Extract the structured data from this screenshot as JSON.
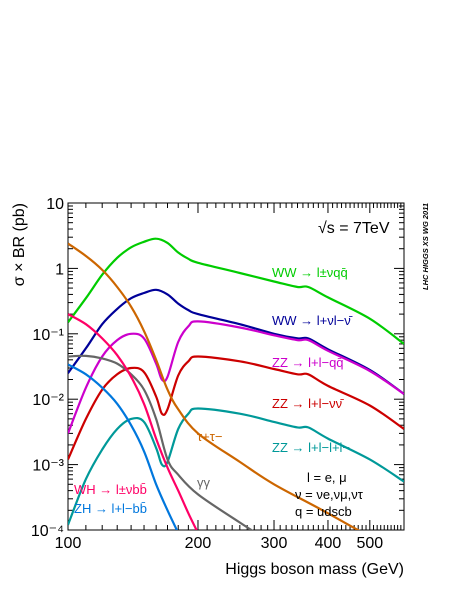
{
  "chart_data": {
    "type": "line",
    "xlabel": "Higgs boson mass (GeV)",
    "ylabel": "σ × BR (pb)",
    "energy_label": "√s = 7TeV",
    "side_label": "LHC HIGGS XS WG 2011",
    "x_scale": "log",
    "y_scale": "log",
    "xlim": [
      100,
      600
    ],
    "ylim": [
      0.0001,
      10
    ],
    "x_ticks": [
      {
        "value": 100,
        "label": "100"
      },
      {
        "value": 200,
        "label": "200"
      },
      {
        "value": 300,
        "label": "300"
      },
      {
        "value": 400,
        "label": "400"
      },
      {
        "value": 500,
        "label": "500"
      }
    ],
    "y_ticks": [
      {
        "value": 10,
        "label": "10"
      },
      {
        "value": 1,
        "label": "1"
      },
      {
        "value": 0.1,
        "label": "10⁻¹"
      },
      {
        "value": 0.01,
        "label": "10⁻²"
      },
      {
        "value": 0.001,
        "label": "10⁻³"
      },
      {
        "value": 0.0001,
        "label": "10⁻⁴"
      }
    ],
    "legend_notes": [
      "l = e, μ",
      "ν = νe,νμ,ντ",
      "q = udscb"
    ],
    "series": [
      {
        "name": "WW → lνqq̄",
        "color": "#00cc00",
        "x": [
          100,
          110,
          120,
          130,
          140,
          150,
          160,
          170,
          180,
          190,
          200,
          250,
          300,
          340,
          360,
          400,
          500,
          600
        ],
        "y": [
          0.15,
          0.35,
          0.8,
          1.45,
          2.1,
          2.55,
          2.85,
          2.45,
          1.75,
          1.4,
          1.22,
          0.85,
          0.63,
          0.52,
          0.52,
          0.36,
          0.17,
          0.07
        ]
      },
      {
        "name": "WW → lνlν",
        "color": "#000099",
        "x": [
          100,
          110,
          120,
          130,
          140,
          150,
          160,
          170,
          180,
          190,
          200,
          250,
          300,
          340,
          360,
          400,
          500,
          600
        ],
        "y": [
          0.025,
          0.06,
          0.14,
          0.24,
          0.35,
          0.42,
          0.47,
          0.4,
          0.29,
          0.23,
          0.2,
          0.14,
          0.1,
          0.085,
          0.085,
          0.058,
          0.028,
          0.012
        ]
      },
      {
        "name": "ZZ → llqq̄",
        "color": "#cc00cc",
        "x": [
          100,
          110,
          120,
          130,
          140,
          150,
          160,
          165,
          170,
          180,
          190,
          200,
          250,
          300,
          340,
          360,
          400,
          500,
          600
        ],
        "y": [
          0.003,
          0.015,
          0.045,
          0.08,
          0.1,
          0.085,
          0.035,
          0.02,
          0.022,
          0.075,
          0.13,
          0.155,
          0.125,
          0.095,
          0.08,
          0.08,
          0.055,
          0.027,
          0.012
        ]
      },
      {
        "name": "ZZ → llνν",
        "color": "#cc0000",
        "x": [
          100,
          110,
          120,
          130,
          140,
          150,
          160,
          165,
          170,
          180,
          190,
          200,
          250,
          300,
          340,
          360,
          400,
          500,
          600
        ],
        "y": [
          0.0012,
          0.005,
          0.014,
          0.024,
          0.03,
          0.026,
          0.011,
          0.006,
          0.007,
          0.023,
          0.038,
          0.045,
          0.038,
          0.029,
          0.024,
          0.024,
          0.016,
          0.008,
          0.0035
        ]
      },
      {
        "name": "ZZ → llll",
        "color": "#009999",
        "x": [
          100,
          110,
          120,
          130,
          140,
          150,
          160,
          165,
          170,
          180,
          190,
          200,
          250,
          300,
          340,
          360,
          400,
          500,
          600
        ],
        "y": [
          0.00012,
          0.0006,
          0.0017,
          0.0035,
          0.005,
          0.0045,
          0.0018,
          0.001,
          0.0011,
          0.0035,
          0.006,
          0.0072,
          0.006,
          0.0045,
          0.0037,
          0.0037,
          0.0025,
          0.0012,
          0.00055
        ]
      },
      {
        "name": "ττ",
        "color": "#cc6600",
        "x": [
          100,
          110,
          120,
          130,
          140,
          150,
          160,
          170,
          180,
          200,
          250,
          300,
          400,
          600
        ],
        "y": [
          2.4,
          1.55,
          0.95,
          0.52,
          0.26,
          0.11,
          0.04,
          0.014,
          0.007,
          0.003,
          0.0011,
          0.0005,
          0.00018,
          4e-05
        ]
      },
      {
        "name": "γγ",
        "color": "#666666",
        "x": [
          100,
          110,
          120,
          130,
          140,
          150,
          160,
          170,
          180,
          200,
          250,
          300
        ],
        "y": [
          0.045,
          0.046,
          0.042,
          0.035,
          0.024,
          0.014,
          0.005,
          0.0012,
          0.0007,
          0.00035,
          0.00013,
          6e-05
        ]
      },
      {
        "name": "WH → lνbb̄",
        "color": "#ff0066",
        "x": [
          100,
          110,
          120,
          130,
          140,
          150,
          160,
          170,
          180,
          190,
          200
        ],
        "y": [
          0.2,
          0.14,
          0.085,
          0.047,
          0.022,
          0.0085,
          0.0025,
          0.0009,
          0.0004,
          0.00018,
          9e-05
        ]
      },
      {
        "name": "ZH → llbb̄",
        "color": "#0077dd",
        "x": [
          100,
          110,
          120,
          130,
          140,
          150,
          160,
          170,
          180,
          190
        ],
        "y": [
          0.034,
          0.024,
          0.015,
          0.0085,
          0.004,
          0.0016,
          0.0005,
          0.0002,
          9e-05,
          4e-05
        ]
      }
    ],
    "series_labels": [
      {
        "text": "WW → l±νqq̄",
        "series": 0
      },
      {
        "text": "WW → l+νl−ν̄",
        "series": 1
      },
      {
        "text": "ZZ → l+l−qq̄",
        "series": 2
      },
      {
        "text": "ZZ → l+l−νν̄",
        "series": 3
      },
      {
        "text": "ZZ → l+l−l+l−",
        "series": 4
      },
      {
        "text": "τ+τ−",
        "series": 5
      },
      {
        "text": "γγ",
        "series": 6
      },
      {
        "text": "WH → l±νbb̄",
        "series": 7
      },
      {
        "text": "ZH → l+l−bb̄",
        "series": 8
      }
    ]
  }
}
